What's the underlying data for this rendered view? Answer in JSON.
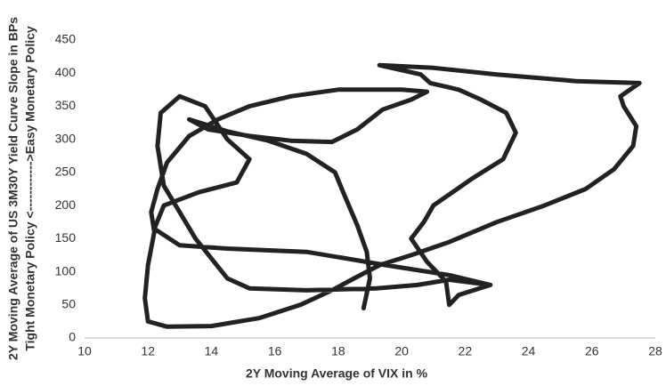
{
  "chart_data": {
    "type": "line",
    "xlabel": "2Y Moving Average of VIX in %",
    "ylabel": [
      "2Y Moving Average of US 3M30Y Yield Curve Slope in BPs",
      "Tight Monetary Policy <------------>Easy Monetary Policy"
    ],
    "color": "#222222",
    "xlim": [
      10,
      28
    ],
    "ylim": [
      0,
      450
    ],
    "xticks": [
      10,
      12,
      14,
      16,
      18,
      20,
      22,
      24,
      26,
      28
    ],
    "yticks": [
      0,
      50,
      100,
      150,
      200,
      250,
      300,
      350,
      400,
      450
    ],
    "grid": false,
    "x": [
      18.8,
      19.0,
      18.9,
      18.6,
      18.2,
      17.9,
      17.0,
      15.8,
      14.5,
      13.3,
      13.9,
      15.2,
      16.5,
      17.8,
      18.6,
      19.4,
      20.3,
      20.8,
      20.0,
      18.0,
      16.5,
      15.2,
      14.2,
      13.3,
      12.6,
      12.3,
      12.1,
      12.2,
      12.0,
      11.9,
      12.0,
      12.6,
      14.0,
      15.5,
      16.8,
      17.8,
      18.5,
      19.3,
      20.3,
      21.5,
      23.0,
      24.5,
      25.8,
      26.7,
      27.3,
      27.4,
      27.0,
      26.9,
      27.5,
      25.5,
      23.0,
      21.0,
      19.3,
      20.6,
      20.9,
      21.8,
      22.5,
      23.3,
      23.6,
      23.2,
      22.2,
      21.0,
      20.7,
      20.3,
      20.8,
      21.4,
      21.5,
      21.8,
      22.8,
      21.5,
      19.5,
      17.0,
      14.5,
      13.0,
      12.2,
      12.5,
      13.6,
      14.8,
      15.2,
      14.5,
      13.8,
      13.0,
      12.4,
      12.3,
      12.5,
      13.5,
      14.5,
      15.2,
      17.0,
      19.2,
      20.5,
      21.5,
      22.8
    ],
    "values": [
      45,
      90,
      130,
      170,
      215,
      250,
      278,
      298,
      312,
      330,
      315,
      305,
      298,
      296,
      315,
      345,
      360,
      372,
      375,
      375,
      365,
      350,
      330,
      305,
      265,
      225,
      190,
      160,
      110,
      60,
      25,
      17,
      18,
      30,
      50,
      72,
      90,
      110,
      125,
      145,
      175,
      200,
      225,
      255,
      290,
      320,
      350,
      365,
      385,
      388,
      398,
      408,
      412,
      398,
      385,
      375,
      360,
      340,
      310,
      270,
      240,
      200,
      175,
      150,
      115,
      85,
      50,
      65,
      80,
      95,
      110,
      130,
      135,
      140,
      165,
      200,
      220,
      235,
      270,
      300,
      350,
      365,
      340,
      290,
      230,
      150,
      90,
      75,
      72,
      75,
      80,
      88,
      80
    ]
  }
}
